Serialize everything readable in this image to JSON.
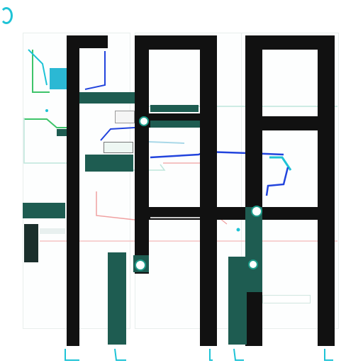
{
  "header": {
    "logo_icon": "ring-logo-icon"
  },
  "colors": {
    "teal": "#1e5c51",
    "blue": "#2244dd",
    "cyan": "#1ec3d6",
    "green": "#3ec46a",
    "red": "#f0a0a0",
    "dark": "#111111"
  },
  "icons": {
    "node": "map-pin-icon"
  }
}
